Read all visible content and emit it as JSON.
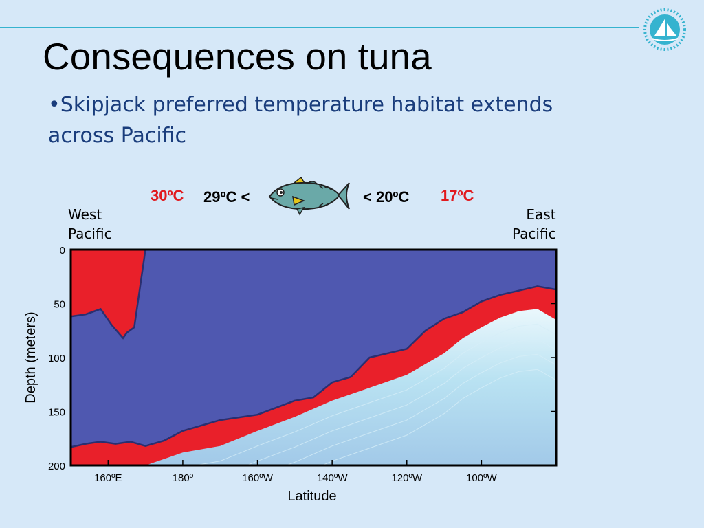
{
  "slide": {
    "title": "Consequences on tuna",
    "bullet_mark": "•",
    "bullet_text": "Skipjack preferred temperature habitat extends across Pacific",
    "logo_icon": "spc-sail-logo-icon",
    "accent_color": "#35b3cf"
  },
  "temperature_labels": {
    "hot_warm": "30ºC",
    "warm_pref": "29ºC <",
    "cool_pref": "< 20ºC",
    "cool": "17ºC",
    "fish_icon": "skipjack-tuna-icon"
  },
  "region_labels": {
    "west": "West\nPacific",
    "east": "East\nPacific"
  },
  "chart_data": {
    "type": "area",
    "xlabel": "Latitude",
    "ylabel": "Depth (meters)",
    "x_ticks": [
      "160ºE",
      "180º",
      "160ºW",
      "140ºW",
      "120ºW",
      "100ºW"
    ],
    "y_ticks": [
      "0",
      "50",
      "100",
      "150",
      "200"
    ],
    "ylim": [
      0,
      200
    ],
    "y_inverted": true,
    "colors": {
      "preferred_habitat": "#4f58b0",
      "warm_band": "#e9202a",
      "cool_water": "#a9d8ee"
    },
    "series": [
      {
        "name": "30ºC",
        "x_lon": [
          150,
          154,
          158,
          161,
          164,
          165,
          167,
          170
        ],
        "depth": [
          62,
          60,
          55,
          70,
          82,
          77,
          72,
          0
        ]
      },
      {
        "name": "29ºC",
        "x_lon": [
          150,
          154,
          158,
          162,
          166,
          170,
          175,
          180,
          190,
          200,
          210,
          215,
          220,
          225,
          230,
          240,
          245,
          250,
          255,
          260,
          265,
          270,
          275,
          280
        ],
        "depth": [
          183,
          180,
          178,
          180,
          178,
          182,
          177,
          168,
          158,
          153,
          140,
          137,
          123,
          118,
          100,
          92,
          75,
          64,
          58,
          48,
          42,
          38,
          34,
          37
        ]
      },
      {
        "name": "20ºC",
        "x_lon": [
          150,
          160,
          170,
          175,
          180,
          190,
          200,
          210,
          220,
          230,
          240,
          250,
          255,
          260,
          265,
          270,
          275,
          280
        ],
        "depth": [
          200,
          200,
          200,
          194,
          188,
          182,
          168,
          155,
          140,
          128,
          116,
          96,
          82,
          72,
          63,
          57,
          55,
          65
        ]
      }
    ]
  }
}
